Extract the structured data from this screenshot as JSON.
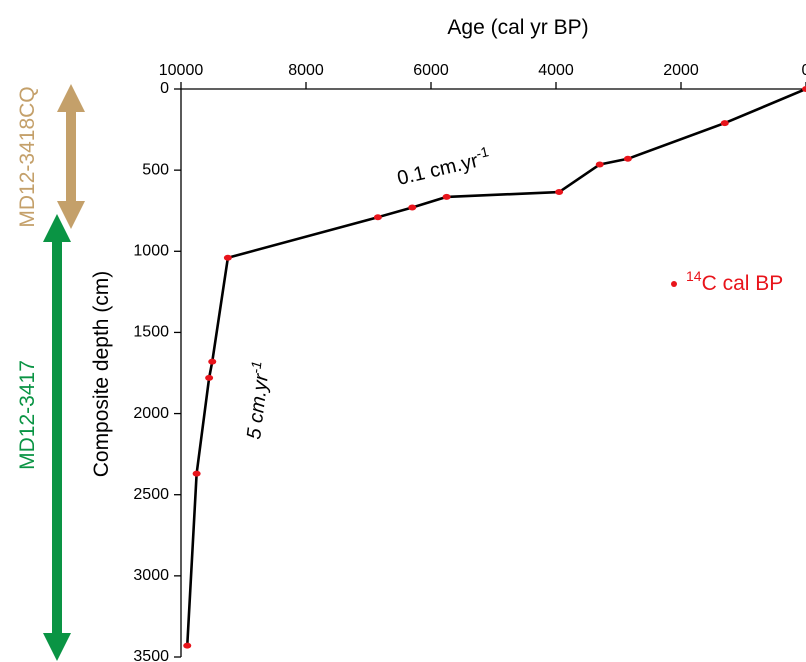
{
  "chart_data": {
    "type": "line",
    "xlabel": "Age (cal yr BP)",
    "ylabel": "Composite depth (cm)",
    "xlim": [
      10000,
      0
    ],
    "ylim": [
      3500,
      0
    ],
    "x_axis_position": "top",
    "x_reversed": true,
    "y_reversed": true,
    "grid": false,
    "xticks": [
      {
        "value": 10000,
        "label": "10000"
      },
      {
        "value": 8000,
        "label": "8000"
      },
      {
        "value": 6000,
        "label": "6000"
      },
      {
        "value": 4000,
        "label": "4000"
      },
      {
        "value": 2000,
        "label": "2000"
      },
      {
        "value": 0,
        "label": "0"
      }
    ],
    "yticks": [
      {
        "value": 0,
        "label": "0"
      },
      {
        "value": 500,
        "label": "500"
      },
      {
        "value": 1000,
        "label": "1000"
      },
      {
        "value": 1500,
        "label": "1500"
      },
      {
        "value": 2000,
        "label": "2000"
      },
      {
        "value": 2500,
        "label": "2500"
      },
      {
        "value": 3000,
        "label": "3000"
      },
      {
        "value": 3500,
        "label": "3500"
      }
    ],
    "age_model": {
      "color": "#000000",
      "points": [
        {
          "x": 0,
          "y": 0
        },
        {
          "x": 1300,
          "y": 210
        },
        {
          "x": 2850,
          "y": 430
        },
        {
          "x": 3300,
          "y": 465
        },
        {
          "x": 3950,
          "y": 635
        },
        {
          "x": 5750,
          "y": 665
        },
        {
          "x": 6300,
          "y": 730
        },
        {
          "x": 6850,
          "y": 790
        },
        {
          "x": 9250,
          "y": 1040
        },
        {
          "x": 9500,
          "y": 1680
        },
        {
          "x": 9550,
          "y": 1780
        },
        {
          "x": 9750,
          "y": 2370
        },
        {
          "x": 9900,
          "y": 3430
        }
      ]
    },
    "dates": {
      "legend": "14C cal BP",
      "legend_super": "14",
      "legend_rest": "C cal BP",
      "color": "#e8141b",
      "points": [
        {
          "x": 0,
          "y": 0
        },
        {
          "x": 1300,
          "y": 210
        },
        {
          "x": 2850,
          "y": 430
        },
        {
          "x": 3300,
          "y": 465
        },
        {
          "x": 3950,
          "y": 635
        },
        {
          "x": 5750,
          "y": 665
        },
        {
          "x": 6300,
          "y": 730
        },
        {
          "x": 6850,
          "y": 790
        },
        {
          "x": 9250,
          "y": 1040
        },
        {
          "x": 9500,
          "y": 1680
        },
        {
          "x": 9550,
          "y": 1780
        },
        {
          "x": 9750,
          "y": 2370
        },
        {
          "x": 9900,
          "y": 3430
        }
      ]
    },
    "annotations": [
      {
        "text": "0.1 cm.yr-1",
        "base": "0.1 cm.yr",
        "sup": "-1"
      },
      {
        "text": "5 cm.yr-1",
        "base": "5 cm.yr",
        "sup": "-1"
      }
    ],
    "cores": [
      {
        "name": "MD12-3418CQ",
        "color": "#c4a06a",
        "depth_range": [
          0,
          800
        ]
      },
      {
        "name": "MD12-3417",
        "color": "#0a9444",
        "depth_range": [
          800,
          3500
        ]
      }
    ]
  }
}
